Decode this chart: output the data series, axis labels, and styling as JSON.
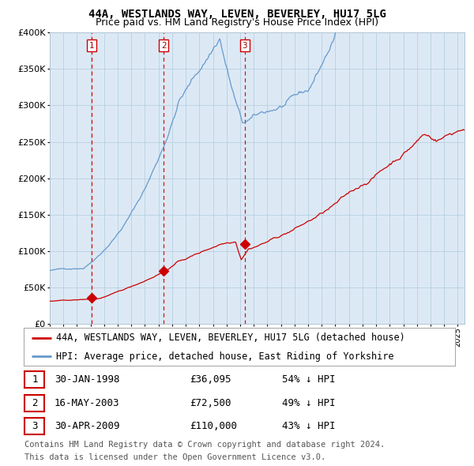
{
  "title": "44A, WESTLANDS WAY, LEVEN, BEVERLEY, HU17 5LG",
  "subtitle": "Price paid vs. HM Land Registry's House Price Index (HPI)",
  "legend_label_red": "44A, WESTLANDS WAY, LEVEN, BEVERLEY, HU17 5LG (detached house)",
  "legend_label_blue": "HPI: Average price, detached house, East Riding of Yorkshire",
  "footer_line1": "Contains HM Land Registry data © Crown copyright and database right 2024.",
  "footer_line2": "This data is licensed under the Open Government Licence v3.0.",
  "sale_points": [
    {
      "label": "1",
      "date_num": 1998.08,
      "price": 36095,
      "date_str": "30-JAN-1998",
      "price_str": "£36,095",
      "hpi_str": "54% ↓ HPI"
    },
    {
      "label": "2",
      "date_num": 2003.37,
      "price": 72500,
      "date_str": "16-MAY-2003",
      "price_str": "£72,500",
      "hpi_str": "49% ↓ HPI"
    },
    {
      "label": "3",
      "date_num": 2009.33,
      "price": 110000,
      "date_str": "30-APR-2009",
      "price_str": "£110,000",
      "hpi_str": "43% ↓ HPI"
    }
  ],
  "ylim": [
    0,
    400000
  ],
  "xlim_start": 1995.0,
  "xlim_end": 2025.5,
  "background_color": "#dce9f5",
  "grid_color": "#b8cfe0",
  "line_color_red": "#cc0000",
  "line_color_blue": "#6699cc",
  "vline_color": "#cc0000",
  "marker_color": "#cc0000",
  "box_color_red": "#cc0000",
  "title_fontsize": 10,
  "subtitle_fontsize": 9,
  "axis_fontsize": 8,
  "legend_fontsize": 8.5,
  "footer_fontsize": 7.5,
  "table_fontsize": 9
}
